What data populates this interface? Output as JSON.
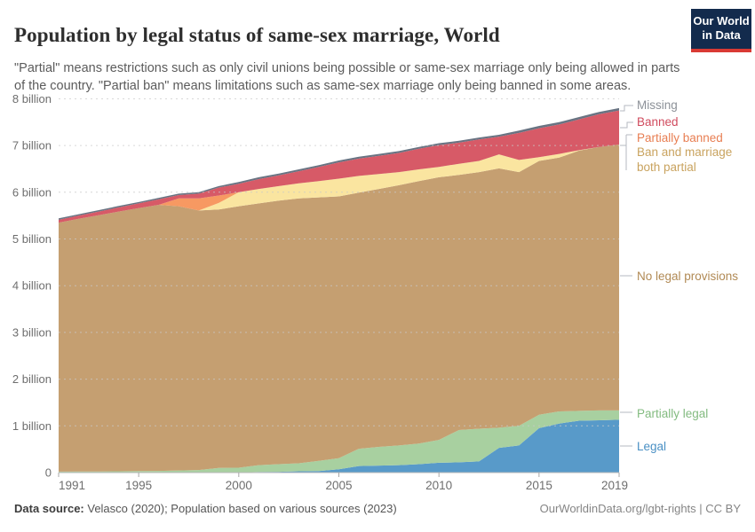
{
  "header": {
    "title": "Population by legal status of same-sex marriage, World",
    "subtitle": "\"Partial\" means restrictions such as only civil unions being possible or same-sex marriage only being allowed in parts of the country. \"Partial ban\" means limitations such as same-sex marriage only being banned in some areas.",
    "logo": {
      "line1": "Our World",
      "line2": "in Data",
      "bg_color": "#132b4d",
      "bar_color": "#d93a34"
    }
  },
  "chart_data": {
    "type": "area",
    "stacked": true,
    "title": "Population by legal status of same-sex marriage, World",
    "unit": "billion people",
    "xlabel": "",
    "ylabel": "",
    "ylim": [
      0,
      8
    ],
    "grid": "horizontal-dashed",
    "legend_position": "right",
    "x": [
      1991,
      1992,
      1993,
      1994,
      1995,
      1996,
      1997,
      1998,
      1999,
      2000,
      2001,
      2002,
      2003,
      2004,
      2005,
      2006,
      2007,
      2008,
      2009,
      2010,
      2011,
      2012,
      2013,
      2014,
      2015,
      2016,
      2017,
      2018,
      2019
    ],
    "x_ticks": [
      1991,
      1995,
      2000,
      2005,
      2010,
      2015,
      2019
    ],
    "y_ticks": [
      {
        "value": 0,
        "label": "0"
      },
      {
        "value": 1,
        "label": "1 billion"
      },
      {
        "value": 2,
        "label": "2 billion"
      },
      {
        "value": 3,
        "label": "3 billion"
      },
      {
        "value": 4,
        "label": "4 billion"
      },
      {
        "value": 5,
        "label": "5 billion"
      },
      {
        "value": 6,
        "label": "6 billion"
      },
      {
        "value": 7,
        "label": "7 billion"
      },
      {
        "value": 8,
        "label": "8 billion"
      }
    ],
    "series": [
      {
        "id": "legal",
        "label": "Legal",
        "color": "#589ac9",
        "label_color": "#4a90c4",
        "values": [
          0,
          0,
          0,
          0,
          0,
          0,
          0,
          0,
          0,
          0,
          0.016,
          0.017,
          0.028,
          0.035,
          0.07,
          0.14,
          0.15,
          0.16,
          0.18,
          0.21,
          0.22,
          0.24,
          0.53,
          0.58,
          0.95,
          1.05,
          1.11,
          1.12,
          1.13
        ]
      },
      {
        "id": "partially_legal",
        "label": "Partially legal",
        "color": "#a8d0a0",
        "label_color": "#83bb80",
        "values": [
          0.02,
          0.022,
          0.025,
          0.028,
          0.032,
          0.036,
          0.045,
          0.055,
          0.1,
          0.105,
          0.144,
          0.163,
          0.172,
          0.215,
          0.24,
          0.37,
          0.4,
          0.42,
          0.44,
          0.49,
          0.69,
          0.7,
          0.43,
          0.42,
          0.29,
          0.26,
          0.21,
          0.21,
          0.2
        ]
      },
      {
        "id": "no_provisions",
        "label": "No legal provisions",
        "color": "#c59f71",
        "label_color": "#b18a55",
        "values": [
          5.33,
          5.408,
          5.482,
          5.558,
          5.628,
          5.694,
          5.655,
          5.555,
          5.53,
          5.595,
          5.6,
          5.64,
          5.67,
          5.64,
          5.6,
          5.48,
          5.52,
          5.57,
          5.62,
          5.62,
          5.46,
          5.49,
          5.55,
          5.43,
          5.43,
          5.43,
          5.57,
          5.64,
          5.69
        ]
      },
      {
        "id": "both_partial",
        "label": "Ban and marriage both partial",
        "color": "#fae5a0",
        "label_color": "#c9a35f",
        "values": [
          0,
          0,
          0,
          0,
          0,
          0,
          0,
          0,
          0.14,
          0.3,
          0.31,
          0.31,
          0.32,
          0.35,
          0.38,
          0.36,
          0.32,
          0.28,
          0.25,
          0.22,
          0.24,
          0.24,
          0.3,
          0.26,
          0.08,
          0.08,
          0.01,
          0,
          0
        ]
      },
      {
        "id": "partially_banned",
        "label": "Partially banned",
        "color": "#f79962",
        "label_color": "#e87e52",
        "values": [
          0,
          0,
          0,
          0,
          0,
          0,
          0.17,
          0.26,
          0.16,
          0,
          0,
          0,
          0,
          0,
          0,
          0,
          0,
          0,
          0,
          0,
          0,
          0,
          0,
          0,
          0,
          0,
          0,
          0,
          0
        ]
      },
      {
        "id": "banned",
        "label": "Banned",
        "color": "#d75a67",
        "label_color": "#d04b5e",
        "values": [
          0.06,
          0.07,
          0.08,
          0.09,
          0.1,
          0.12,
          0.07,
          0.1,
          0.17,
          0.18,
          0.21,
          0.23,
          0.26,
          0.3,
          0.35,
          0.37,
          0.39,
          0.41,
          0.44,
          0.47,
          0.45,
          0.46,
          0.38,
          0.58,
          0.62,
          0.63,
          0.66,
          0.7,
          0.73
        ]
      },
      {
        "id": "missing",
        "label": "Missing",
        "color": "#697382",
        "label_color": "#8c9198",
        "values": [
          0.03,
          0.03,
          0.03,
          0.03,
          0.03,
          0.03,
          0.03,
          0.03,
          0.03,
          0.04,
          0.04,
          0.04,
          0.04,
          0.04,
          0.04,
          0.04,
          0.04,
          0.04,
          0.04,
          0.04,
          0.04,
          0.04,
          0.04,
          0.05,
          0.05,
          0.05,
          0.05,
          0.05,
          0.05
        ]
      }
    ]
  },
  "footer": {
    "source_label": "Data source:",
    "source_text": " Velasco (2020); Population based on various sources (2023)",
    "right_text": "OurWorldinData.org/lgbt-rights | CC BY"
  }
}
